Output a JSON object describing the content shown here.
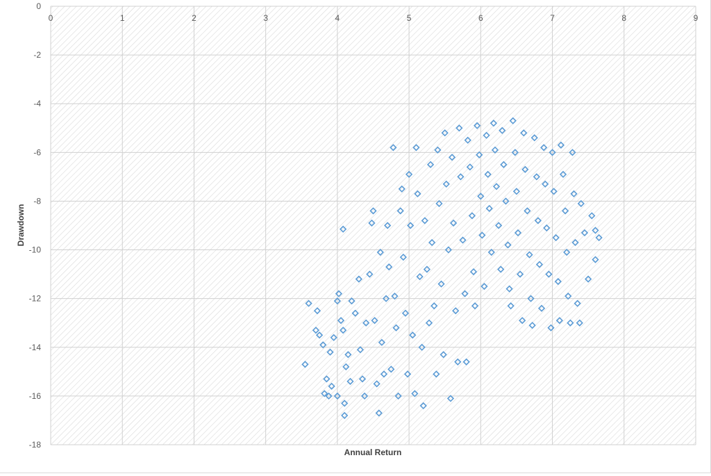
{
  "chart_data": {
    "type": "scatter",
    "title": "",
    "xlabel": "Annual Return",
    "ylabel": "Drawdown",
    "xlim": [
      0,
      9
    ],
    "ylim": [
      -18,
      0
    ],
    "x_ticks": [
      "0",
      "1",
      "2",
      "3",
      "4",
      "5",
      "6",
      "7",
      "8",
      "9"
    ],
    "y_ticks": [
      "0",
      "-2",
      "-4",
      "-6",
      "-8",
      "-10",
      "-12",
      "-14",
      "-16",
      "-18"
    ],
    "grid": true,
    "legend": "none",
    "marker": "hollow-diamond",
    "marker_color": "#5b9bd5",
    "plot_background": "hatched-light-gray",
    "series": [
      {
        "points": [
          [
            3.55,
            -14.7
          ],
          [
            3.6,
            -12.2
          ],
          [
            3.7,
            -13.3
          ],
          [
            3.75,
            -13.5
          ],
          [
            3.72,
            -12.5
          ],
          [
            3.8,
            -13.9
          ],
          [
            3.82,
            -15.9
          ],
          [
            3.85,
            -15.3
          ],
          [
            3.88,
            -16.0
          ],
          [
            3.9,
            -14.2
          ],
          [
            3.95,
            -13.6
          ],
          [
            3.92,
            -15.6
          ],
          [
            4.0,
            -12.1
          ],
          [
            4.02,
            -11.8
          ],
          [
            4.05,
            -12.9
          ],
          [
            4.08,
            -13.3
          ],
          [
            4.0,
            -16.0
          ],
          [
            4.1,
            -16.3
          ],
          [
            4.1,
            -16.8
          ],
          [
            4.12,
            -14.8
          ],
          [
            4.15,
            -14.3
          ],
          [
            4.18,
            -15.4
          ],
          [
            4.08,
            -9.15
          ],
          [
            4.2,
            -12.1
          ],
          [
            4.25,
            -12.6
          ],
          [
            4.3,
            -11.2
          ],
          [
            4.32,
            -14.1
          ],
          [
            4.35,
            -15.3
          ],
          [
            4.38,
            -16.0
          ],
          [
            4.4,
            -13.0
          ],
          [
            4.45,
            -11.0
          ],
          [
            4.48,
            -8.9
          ],
          [
            4.5,
            -8.4
          ],
          [
            4.52,
            -12.9
          ],
          [
            4.55,
            -15.5
          ],
          [
            4.58,
            -16.7
          ],
          [
            4.6,
            -10.1
          ],
          [
            4.62,
            -13.8
          ],
          [
            4.65,
            -15.1
          ],
          [
            4.68,
            -12.0
          ],
          [
            4.7,
            -9.0
          ],
          [
            4.72,
            -10.7
          ],
          [
            4.75,
            -14.9
          ],
          [
            4.78,
            -5.8
          ],
          [
            4.8,
            -11.9
          ],
          [
            4.82,
            -13.2
          ],
          [
            4.85,
            -16.0
          ],
          [
            4.88,
            -8.4
          ],
          [
            4.9,
            -7.5
          ],
          [
            4.92,
            -10.3
          ],
          [
            4.95,
            -12.6
          ],
          [
            4.98,
            -15.1
          ],
          [
            5.0,
            -6.9
          ],
          [
            5.02,
            -9.0
          ],
          [
            5.05,
            -13.5
          ],
          [
            5.08,
            -15.9
          ],
          [
            5.1,
            -5.8
          ],
          [
            5.12,
            -7.7
          ],
          [
            5.15,
            -11.1
          ],
          [
            5.18,
            -14.0
          ],
          [
            5.2,
            -16.4
          ],
          [
            5.22,
            -8.8
          ],
          [
            5.25,
            -10.8
          ],
          [
            5.28,
            -13.0
          ],
          [
            5.3,
            -6.5
          ],
          [
            5.32,
            -9.7
          ],
          [
            5.35,
            -12.3
          ],
          [
            5.38,
            -15.1
          ],
          [
            5.4,
            -5.9
          ],
          [
            5.42,
            -8.1
          ],
          [
            5.45,
            -11.4
          ],
          [
            5.48,
            -14.3
          ],
          [
            5.5,
            -5.2
          ],
          [
            5.52,
            -7.3
          ],
          [
            5.55,
            -10.0
          ],
          [
            5.58,
            -16.1
          ],
          [
            5.6,
            -6.2
          ],
          [
            5.62,
            -8.9
          ],
          [
            5.65,
            -12.5
          ],
          [
            5.68,
            -14.6
          ],
          [
            5.7,
            -5.0
          ],
          [
            5.72,
            -7.0
          ],
          [
            5.75,
            -9.6
          ],
          [
            5.78,
            -11.8
          ],
          [
            5.8,
            -14.6
          ],
          [
            5.82,
            -5.5
          ],
          [
            5.85,
            -6.6
          ],
          [
            5.88,
            -8.6
          ],
          [
            5.9,
            -10.9
          ],
          [
            5.92,
            -12.3
          ],
          [
            5.95,
            -4.9
          ],
          [
            5.98,
            -6.1
          ],
          [
            6.0,
            -7.8
          ],
          [
            6.02,
            -9.4
          ],
          [
            6.05,
            -11.5
          ],
          [
            6.08,
            -5.3
          ],
          [
            6.1,
            -6.9
          ],
          [
            6.12,
            -8.3
          ],
          [
            6.15,
            -10.1
          ],
          [
            6.18,
            -4.8
          ],
          [
            6.2,
            -5.9
          ],
          [
            6.22,
            -7.4
          ],
          [
            6.25,
            -9.0
          ],
          [
            6.28,
            -10.8
          ],
          [
            6.3,
            -5.1
          ],
          [
            6.32,
            -6.5
          ],
          [
            6.35,
            -8.0
          ],
          [
            6.38,
            -9.8
          ],
          [
            6.4,
            -11.6
          ],
          [
            6.42,
            -12.3
          ],
          [
            6.45,
            -4.7
          ],
          [
            6.48,
            -6.0
          ],
          [
            6.5,
            -7.6
          ],
          [
            6.52,
            -9.3
          ],
          [
            6.55,
            -11.0
          ],
          [
            6.58,
            -12.9
          ],
          [
            6.6,
            -5.2
          ],
          [
            6.62,
            -6.7
          ],
          [
            6.65,
            -8.4
          ],
          [
            6.68,
            -10.2
          ],
          [
            6.7,
            -12.0
          ],
          [
            6.72,
            -13.1
          ],
          [
            6.75,
            -5.4
          ],
          [
            6.78,
            -7.0
          ],
          [
            6.8,
            -8.8
          ],
          [
            6.82,
            -10.6
          ],
          [
            6.85,
            -12.4
          ],
          [
            6.88,
            -5.8
          ],
          [
            6.9,
            -7.3
          ],
          [
            6.92,
            -9.1
          ],
          [
            6.95,
            -11.0
          ],
          [
            6.98,
            -13.2
          ],
          [
            7.0,
            -6.0
          ],
          [
            7.02,
            -7.6
          ],
          [
            7.05,
            -9.5
          ],
          [
            7.08,
            -11.3
          ],
          [
            7.1,
            -12.9
          ],
          [
            7.12,
            -5.7
          ],
          [
            7.15,
            -6.9
          ],
          [
            7.18,
            -8.4
          ],
          [
            7.2,
            -10.1
          ],
          [
            7.22,
            -11.9
          ],
          [
            7.25,
            -13.0
          ],
          [
            7.28,
            -6.0
          ],
          [
            7.3,
            -7.7
          ],
          [
            7.32,
            -9.7
          ],
          [
            7.35,
            -12.2
          ],
          [
            7.38,
            -13.0
          ],
          [
            7.4,
            -8.1
          ],
          [
            7.45,
            -9.3
          ],
          [
            7.5,
            -11.2
          ],
          [
            7.55,
            -8.6
          ],
          [
            7.6,
            -9.2
          ],
          [
            7.6,
            -10.4
          ],
          [
            7.65,
            -9.5
          ]
        ]
      }
    ]
  }
}
